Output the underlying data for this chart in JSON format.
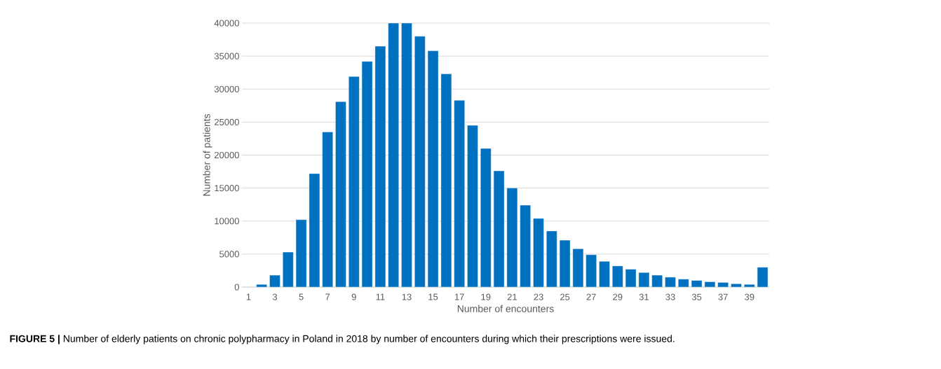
{
  "chart_data": {
    "type": "bar",
    "xlabel": "Number of encounters",
    "ylabel": "Number of patients",
    "categories": [
      "1",
      null,
      "3",
      null,
      "5",
      null,
      "7",
      null,
      "9",
      null,
      "11",
      null,
      "13",
      null,
      "15",
      null,
      "17",
      null,
      "19",
      null,
      "21",
      null,
      "23",
      null,
      "25",
      null,
      "27",
      null,
      "29",
      null,
      "31",
      null,
      "33",
      null,
      "35",
      null,
      "37",
      null,
      "39",
      null
    ],
    "values": [
      null,
      400,
      1800,
      5300,
      10200,
      17200,
      23500,
      28100,
      31900,
      34200,
      36500,
      40000,
      40000,
      38000,
      35800,
      32300,
      28300,
      24500,
      21000,
      17600,
      15000,
      12400,
      10400,
      8500,
      7100,
      5800,
      4900,
      3900,
      3200,
      2700,
      2200,
      1800,
      1500,
      1200,
      1000,
      800,
      700,
      500,
      400,
      3000
    ],
    "color": "#0070c0",
    "ylim": [
      0,
      40000
    ],
    "yticks": [
      0,
      5000,
      10000,
      15000,
      20000,
      25000,
      30000,
      35000,
      40000
    ],
    "grid": "y",
    "annotations": [
      "**FIGURE 5 |** Number of elderly patients on chronic polypharmacy in Poland in 2018 by number of encounters during which their prescriptions were issued."
    ]
  }
}
